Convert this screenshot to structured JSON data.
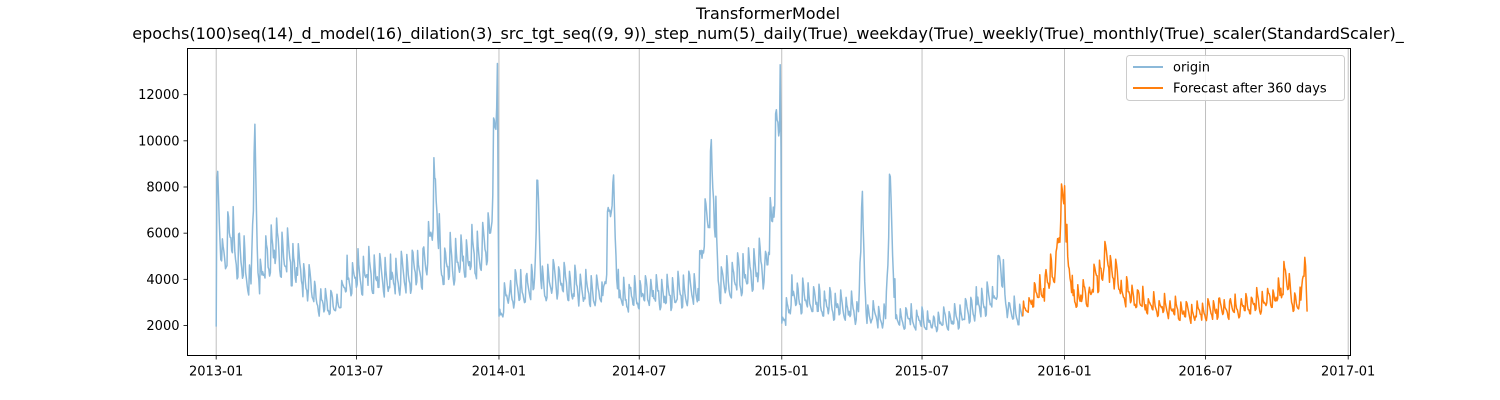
{
  "chart_data": {
    "type": "line",
    "title": "TransformerModel",
    "subtitle": "epochs(100)seq(14)_d_model(16)_dilation(3)_src_tgt_seq((9, 9))_step_num(5)_daily(True)_weekday(True)_weekly(True)_monthly(True)_scaler(StandardScaler)_",
    "xlabel": "",
    "ylabel": "",
    "x_ticks": [
      "2013-01",
      "2013-07",
      "2014-01",
      "2014-07",
      "2015-01",
      "2015-07",
      "2016-01",
      "2016-07",
      "2017-01"
    ],
    "x_range": [
      "2012-11-25",
      "2017-01-04"
    ],
    "y_ticks": [
      2000,
      4000,
      6000,
      8000,
      10000,
      12000
    ],
    "ylim": [
      700,
      14000
    ],
    "grid": "vertical",
    "legend_position": "top-right",
    "series": [
      {
        "name": "origin",
        "color": "#8cb9d9",
        "anchors": [
          [
            "2013-01-01",
            1950
          ],
          [
            "2013-01-02",
            8200
          ],
          [
            "2013-01-08",
            4800
          ],
          [
            "2013-01-20",
            5800
          ],
          [
            "2013-02-15",
            3800
          ],
          [
            "2013-02-19",
            9450
          ],
          [
            "2013-02-25",
            4000
          ],
          [
            "2013-03-15",
            5500
          ],
          [
            "2013-04-15",
            4500
          ],
          [
            "2013-05-15",
            3000
          ],
          [
            "2013-06-05",
            2900
          ],
          [
            "2013-06-20",
            4000
          ],
          [
            "2013-07-15",
            4200
          ],
          [
            "2013-08-15",
            4000
          ],
          [
            "2013-09-15",
            4300
          ],
          [
            "2013-10-01",
            4700
          ],
          [
            "2013-10-10",
            8400
          ],
          [
            "2013-10-18",
            4500
          ],
          [
            "2013-11-15",
            4800
          ],
          [
            "2013-12-10",
            5000
          ],
          [
            "2013-12-20",
            6000
          ],
          [
            "2013-12-28",
            10500
          ],
          [
            "2013-12-30",
            13350
          ],
          [
            "2014-01-01",
            2400
          ],
          [
            "2014-01-15",
            3500
          ],
          [
            "2014-02-15",
            3600
          ],
          [
            "2014-02-19",
            8300
          ],
          [
            "2014-02-25",
            3600
          ],
          [
            "2014-03-15",
            4000
          ],
          [
            "2014-04-15",
            3500
          ],
          [
            "2014-05-15",
            3300
          ],
          [
            "2014-05-28",
            8200
          ],
          [
            "2014-06-05",
            3200
          ],
          [
            "2014-07-15",
            3400
          ],
          [
            "2014-08-15",
            3300
          ],
          [
            "2014-09-15",
            3600
          ],
          [
            "2014-10-03",
            8700
          ],
          [
            "2014-10-12",
            3700
          ],
          [
            "2014-11-15",
            4200
          ],
          [
            "2014-12-10",
            4600
          ],
          [
            "2014-12-20",
            6500
          ],
          [
            "2014-12-26",
            10900
          ],
          [
            "2014-12-30",
            13300
          ],
          [
            "2015-01-01",
            2100
          ],
          [
            "2015-01-15",
            3300
          ],
          [
            "2015-02-15",
            3000
          ],
          [
            "2015-03-15",
            2800
          ],
          [
            "2015-04-10",
            2600
          ],
          [
            "2015-04-14",
            7100
          ],
          [
            "2015-04-20",
            2500
          ],
          [
            "2015-05-15",
            2300
          ],
          [
            "2015-05-21",
            8450
          ],
          [
            "2015-05-28",
            2300
          ],
          [
            "2015-06-15",
            2300
          ],
          [
            "2015-07-15",
            2100
          ],
          [
            "2015-08-15",
            2300
          ],
          [
            "2015-09-10",
            2900
          ],
          [
            "2015-10-01",
            3200
          ],
          [
            "2015-10-10",
            4700
          ],
          [
            "2015-10-20",
            2600
          ],
          [
            "2015-11-08",
            2400
          ]
        ]
      },
      {
        "name": "Forecast after 360 days",
        "color": "#ff7f0e",
        "anchors": [
          [
            "2015-11-08",
            2400
          ],
          [
            "2015-11-20",
            3100
          ],
          [
            "2015-12-05",
            3600
          ],
          [
            "2015-12-20",
            4400
          ],
          [
            "2015-12-27",
            6500
          ],
          [
            "2016-01-01",
            8050
          ],
          [
            "2016-01-05",
            5000
          ],
          [
            "2016-01-12",
            3300
          ],
          [
            "2016-02-01",
            3400
          ],
          [
            "2016-02-25",
            4900
          ],
          [
            "2016-03-15",
            3500
          ],
          [
            "2016-04-15",
            2900
          ],
          [
            "2016-05-15",
            2700
          ],
          [
            "2016-06-15",
            2500
          ],
          [
            "2016-07-15",
            2700
          ],
          [
            "2016-08-15",
            2800
          ],
          [
            "2016-09-15",
            3000
          ],
          [
            "2016-10-05",
            3300
          ],
          [
            "2016-10-12",
            4400
          ],
          [
            "2016-10-20",
            3000
          ],
          [
            "2016-11-01",
            3100
          ],
          [
            "2016-11-06",
            4950
          ],
          [
            "2016-11-09",
            2600
          ]
        ]
      }
    ]
  }
}
